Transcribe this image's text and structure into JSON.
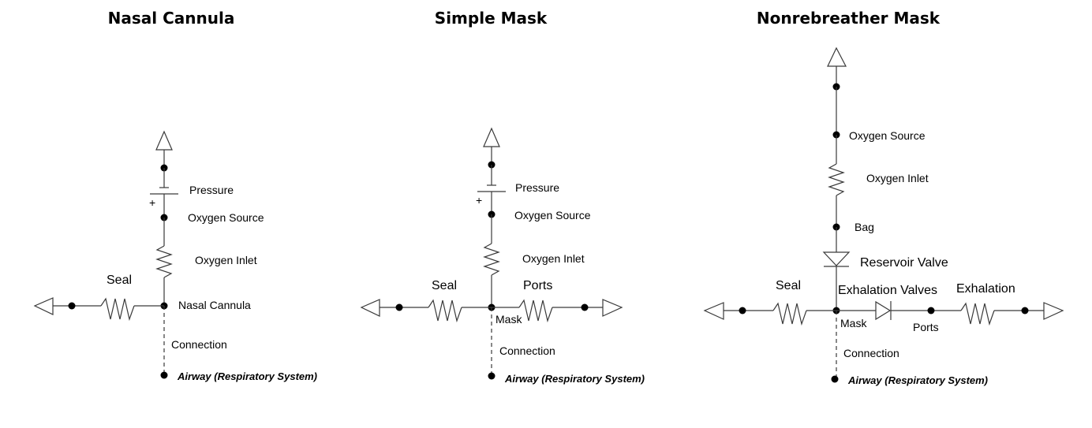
{
  "diagrams": {
    "nasal_cannula": {
      "title": "Nasal Cannula",
      "pressure": "Pressure",
      "plus": "+",
      "oxygen_source": "Oxygen Source",
      "oxygen_inlet": "Oxygen Inlet",
      "seal": "Seal",
      "junction": "Nasal Cannula",
      "connection": "Connection",
      "airway": "Airway (Respiratory System)"
    },
    "simple_mask": {
      "title": "Simple Mask",
      "pressure": "Pressure",
      "plus": "+",
      "oxygen_source": "Oxygen Source",
      "oxygen_inlet": "Oxygen Inlet",
      "seal": "Seal",
      "ports": "Ports",
      "junction": "Mask",
      "connection": "Connection",
      "airway": "Airway (Respiratory System)"
    },
    "nonrebreather_mask": {
      "title": "Nonrebreather Mask",
      "oxygen_source": "Oxygen Source",
      "oxygen_inlet": "Oxygen Inlet",
      "bag": "Bag",
      "reservoir_valve": "Reservoir Valve",
      "seal": "Seal",
      "exhalation_valves": "Exhalation Valves",
      "exhalation": "Exhalation",
      "ports": "Ports",
      "junction": "Mask",
      "connection": "Connection",
      "airway": "Airway (Respiratory System)"
    }
  }
}
